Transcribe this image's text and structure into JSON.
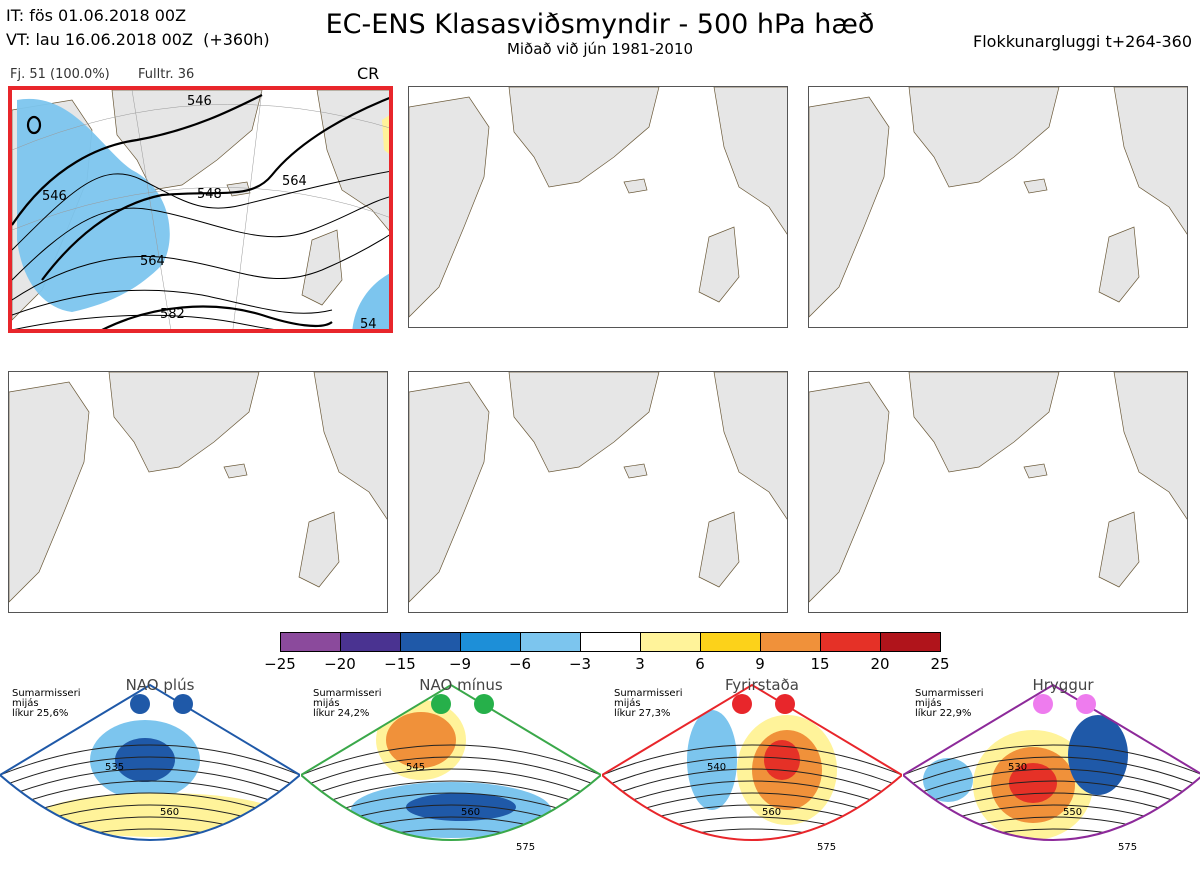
{
  "header": {
    "it_line": "IT: fös 01.06.2018 00Z",
    "vt_line": "VT: lau 16.06.2018 00Z  (+360h)",
    "title": "EC-ENS Klasasviðsmyndir - 500 hPa hæð",
    "subtitle": "Miðað við jún 1981-2010",
    "window": "Flokkunargluggi t+264-360"
  },
  "active_panel": {
    "count_label": "Fj. 51 (100.0%)",
    "rep_label": "Fulltr. 36",
    "class_label": "CR",
    "contour_labels": [
      "546",
      "546",
      "548",
      "564",
      "564",
      "582",
      "54"
    ]
  },
  "panels": [
    {
      "id": 1,
      "active": true
    },
    {
      "id": 2,
      "active": false
    },
    {
      "id": 3,
      "active": false
    },
    {
      "id": 4,
      "active": false
    },
    {
      "id": 5,
      "active": false
    },
    {
      "id": 6,
      "active": false
    }
  ],
  "colorbar": {
    "ticks": [
      "−25",
      "−20",
      "−15",
      "−9",
      "−6",
      "−3",
      "3",
      "6",
      "9",
      "15",
      "20",
      "25"
    ],
    "colors": [
      "#8b4a9c",
      "#4a3391",
      "#1f59a8",
      "#1d8fd8",
      "#7cc5ee",
      "#ffffff",
      "#fff39a",
      "#fcd21a",
      "#f0913a",
      "#e53127",
      "#b0141b"
    ]
  },
  "regimes": [
    {
      "name": "NAO plús",
      "desc": "Sumarmisseri\nmijás\nlíkur 25,6%",
      "dot_color": "#1f59a8",
      "frame_color": "#1f59a8",
      "labels": [
        "535",
        "560"
      ]
    },
    {
      "name": "NAO mínus",
      "desc": "Sumarmisseri\nmijás\nlíkur 24,2%",
      "dot_color": "#26b04a",
      "frame_color": "#3aa84a",
      "labels": [
        "545",
        "560",
        "575"
      ]
    },
    {
      "name": "Fyrirstaða",
      "desc": "Sumarmisseri\nmijás\nlíkur 27,3%",
      "dot_color": "#e8262b",
      "frame_color": "#e8262b",
      "labels": [
        "540",
        "560",
        "575"
      ]
    },
    {
      "name": "Hryggur",
      "desc": "Sumarmisseri\nmijás\nlíkur 22,9%",
      "dot_color": "#ee7cee",
      "frame_color": "#8d2a9a",
      "labels": [
        "530",
        "550",
        "575"
      ]
    }
  ]
}
